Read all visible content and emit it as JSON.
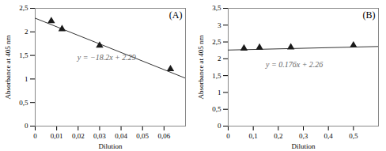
{
  "chart_data": [
    {
      "type": "scatter",
      "title": "(A)",
      "x": [
        0.0075,
        0.0125,
        0.03,
        0.063
      ],
      "values": [
        2.23,
        2.06,
        1.71,
        1.21
      ],
      "color": "#1a1a1a",
      "marker": "triangle",
      "line": {
        "x": [
          0,
          0.07
        ],
        "values": [
          2.29,
          1.016
        ],
        "color": "#333333"
      },
      "annotations": [
        "y = −18.2x + 2.29"
      ],
      "xlabel": "Dilution",
      "ylabel": "Absorbance at 405 nm",
      "xlim": [
        0,
        0.07
      ],
      "ylim": [
        0,
        2.5
      ],
      "xticks": [
        0,
        {
          "value": 0.01,
          "label": "0,01"
        },
        {
          "value": 0.02,
          "label": "0,02"
        },
        {
          "value": 0.03,
          "label": "0,03"
        },
        {
          "value": 0.04,
          "label": "0,04"
        },
        {
          "value": 0.05,
          "label": "0,05"
        },
        {
          "value": 0.06,
          "label": "0,06"
        }
      ],
      "yticks": [
        0,
        {
          "value": 0.5,
          "label": "0,5"
        },
        1,
        {
          "value": 1.5,
          "label": "1,5"
        },
        2,
        {
          "value": 2.5,
          "label": "2,5"
        }
      ],
      "grid": false
    },
    {
      "type": "scatter",
      "title": "(B)",
      "x": [
        0.063,
        0.125,
        0.25,
        0.5
      ],
      "values": [
        2.31,
        2.33,
        2.34,
        2.4
      ],
      "color": "#1a1a1a",
      "marker": "triangle",
      "line": {
        "x": [
          0,
          0.6
        ],
        "values": [
          2.26,
          2.3656
        ],
        "color": "#333333"
      },
      "annotations": [
        "y = 0.176x + 2.26"
      ],
      "xlabel": "Dilution",
      "ylabel": "Absorbance at 405 nm",
      "xlim": [
        0,
        0.6
      ],
      "ylim": [
        0,
        3.5
      ],
      "xticks": [
        0,
        {
          "value": 0.1,
          "label": "0,1"
        },
        {
          "value": 0.2,
          "label": "0,2"
        },
        {
          "value": 0.3,
          "label": "0,3"
        },
        {
          "value": 0.4,
          "label": "0,4"
        },
        {
          "value": 0.5,
          "label": "0,5"
        }
      ],
      "yticks": [
        0,
        {
          "value": 0.5,
          "label": "0,5"
        },
        1,
        {
          "value": 1.5,
          "label": "1,5"
        },
        2,
        {
          "value": 2.5,
          "label": "2,5"
        },
        3,
        {
          "value": 3.5,
          "label": "3,5"
        }
      ],
      "grid": false
    }
  ]
}
